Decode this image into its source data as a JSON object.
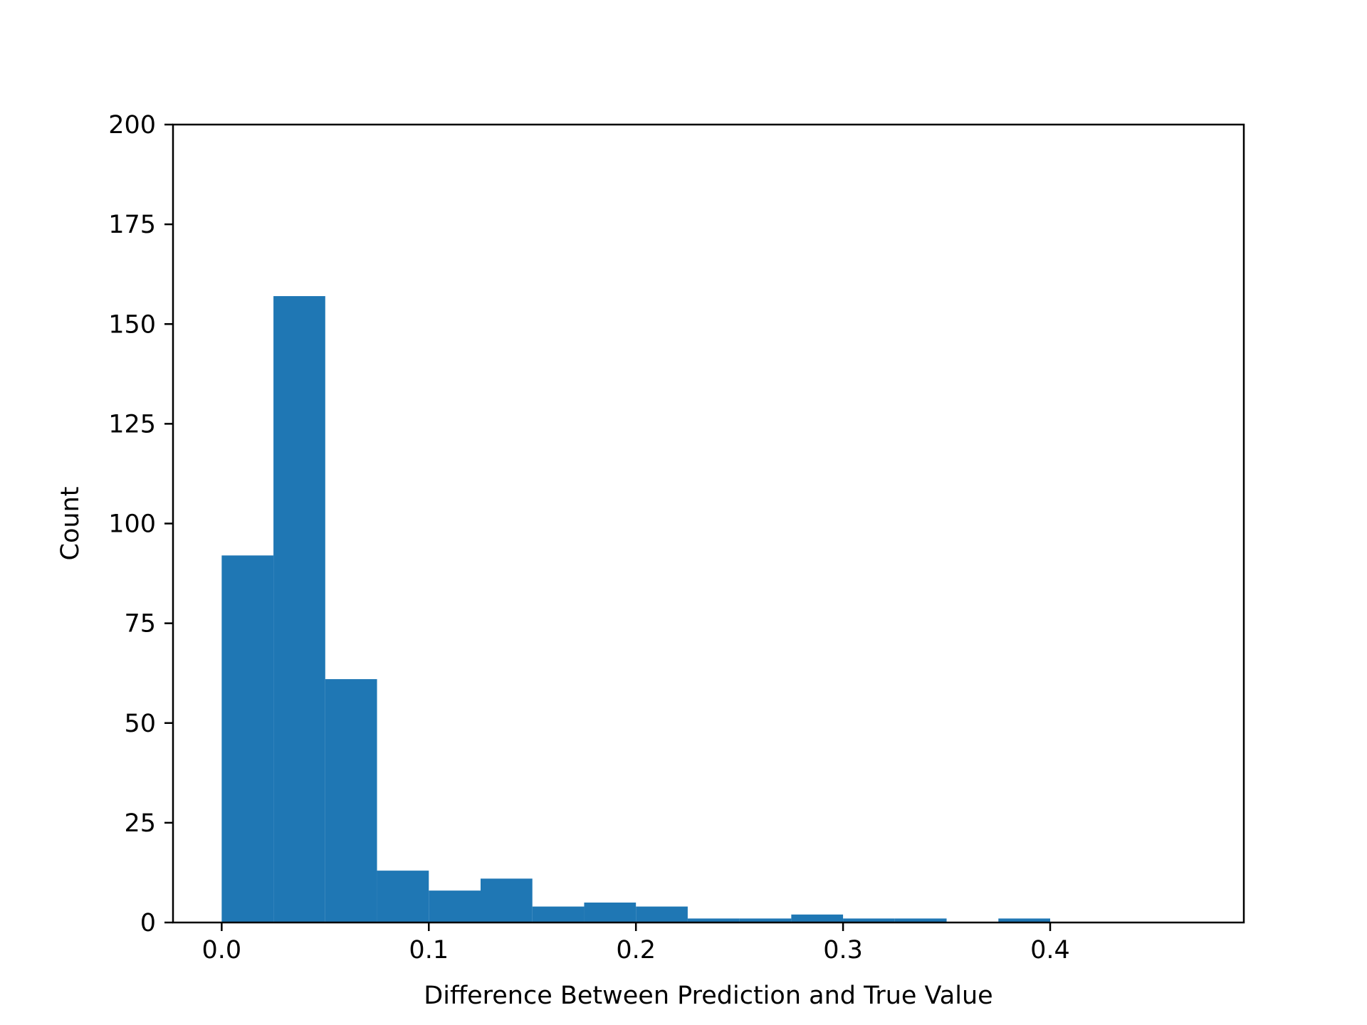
{
  "chart_data": {
    "type": "bar",
    "title": "",
    "xlabel": "Difference Between Prediction and True Value",
    "ylabel": "Count",
    "xlim": [
      -0.0235,
      0.4935
    ],
    "ylim": [
      0,
      200
    ],
    "grid": false,
    "bar_color": "#1f77b4",
    "x_ticks": [
      {
        "value": 0.0,
        "label": "0.0"
      },
      {
        "value": 0.1,
        "label": "0.1"
      },
      {
        "value": 0.2,
        "label": "0.2"
      },
      {
        "value": 0.3,
        "label": "0.3"
      },
      {
        "value": 0.4,
        "label": "0.4"
      }
    ],
    "y_ticks": [
      {
        "value": 0,
        "label": "0"
      },
      {
        "value": 25,
        "label": "25"
      },
      {
        "value": 50,
        "label": "50"
      },
      {
        "value": 75,
        "label": "75"
      },
      {
        "value": 100,
        "label": "100"
      },
      {
        "value": 125,
        "label": "125"
      },
      {
        "value": 150,
        "label": "150"
      },
      {
        "value": 175,
        "label": "175"
      },
      {
        "value": 200,
        "label": "200"
      }
    ],
    "bins": [
      {
        "start": 0.0,
        "end": 0.025,
        "count": 92
      },
      {
        "start": 0.025,
        "end": 0.05,
        "count": 157
      },
      {
        "start": 0.05,
        "end": 0.075,
        "count": 61
      },
      {
        "start": 0.075,
        "end": 0.1,
        "count": 13
      },
      {
        "start": 0.1,
        "end": 0.125,
        "count": 8
      },
      {
        "start": 0.125,
        "end": 0.15,
        "count": 11
      },
      {
        "start": 0.15,
        "end": 0.175,
        "count": 4
      },
      {
        "start": 0.175,
        "end": 0.2,
        "count": 5
      },
      {
        "start": 0.2,
        "end": 0.225,
        "count": 4
      },
      {
        "start": 0.225,
        "end": 0.25,
        "count": 1
      },
      {
        "start": 0.25,
        "end": 0.275,
        "count": 1
      },
      {
        "start": 0.275,
        "end": 0.3,
        "count": 2
      },
      {
        "start": 0.3,
        "end": 0.325,
        "count": 1
      },
      {
        "start": 0.325,
        "end": 0.35,
        "count": 1
      },
      {
        "start": 0.35,
        "end": 0.375,
        "count": 0
      },
      {
        "start": 0.375,
        "end": 0.4,
        "count": 1
      }
    ]
  }
}
